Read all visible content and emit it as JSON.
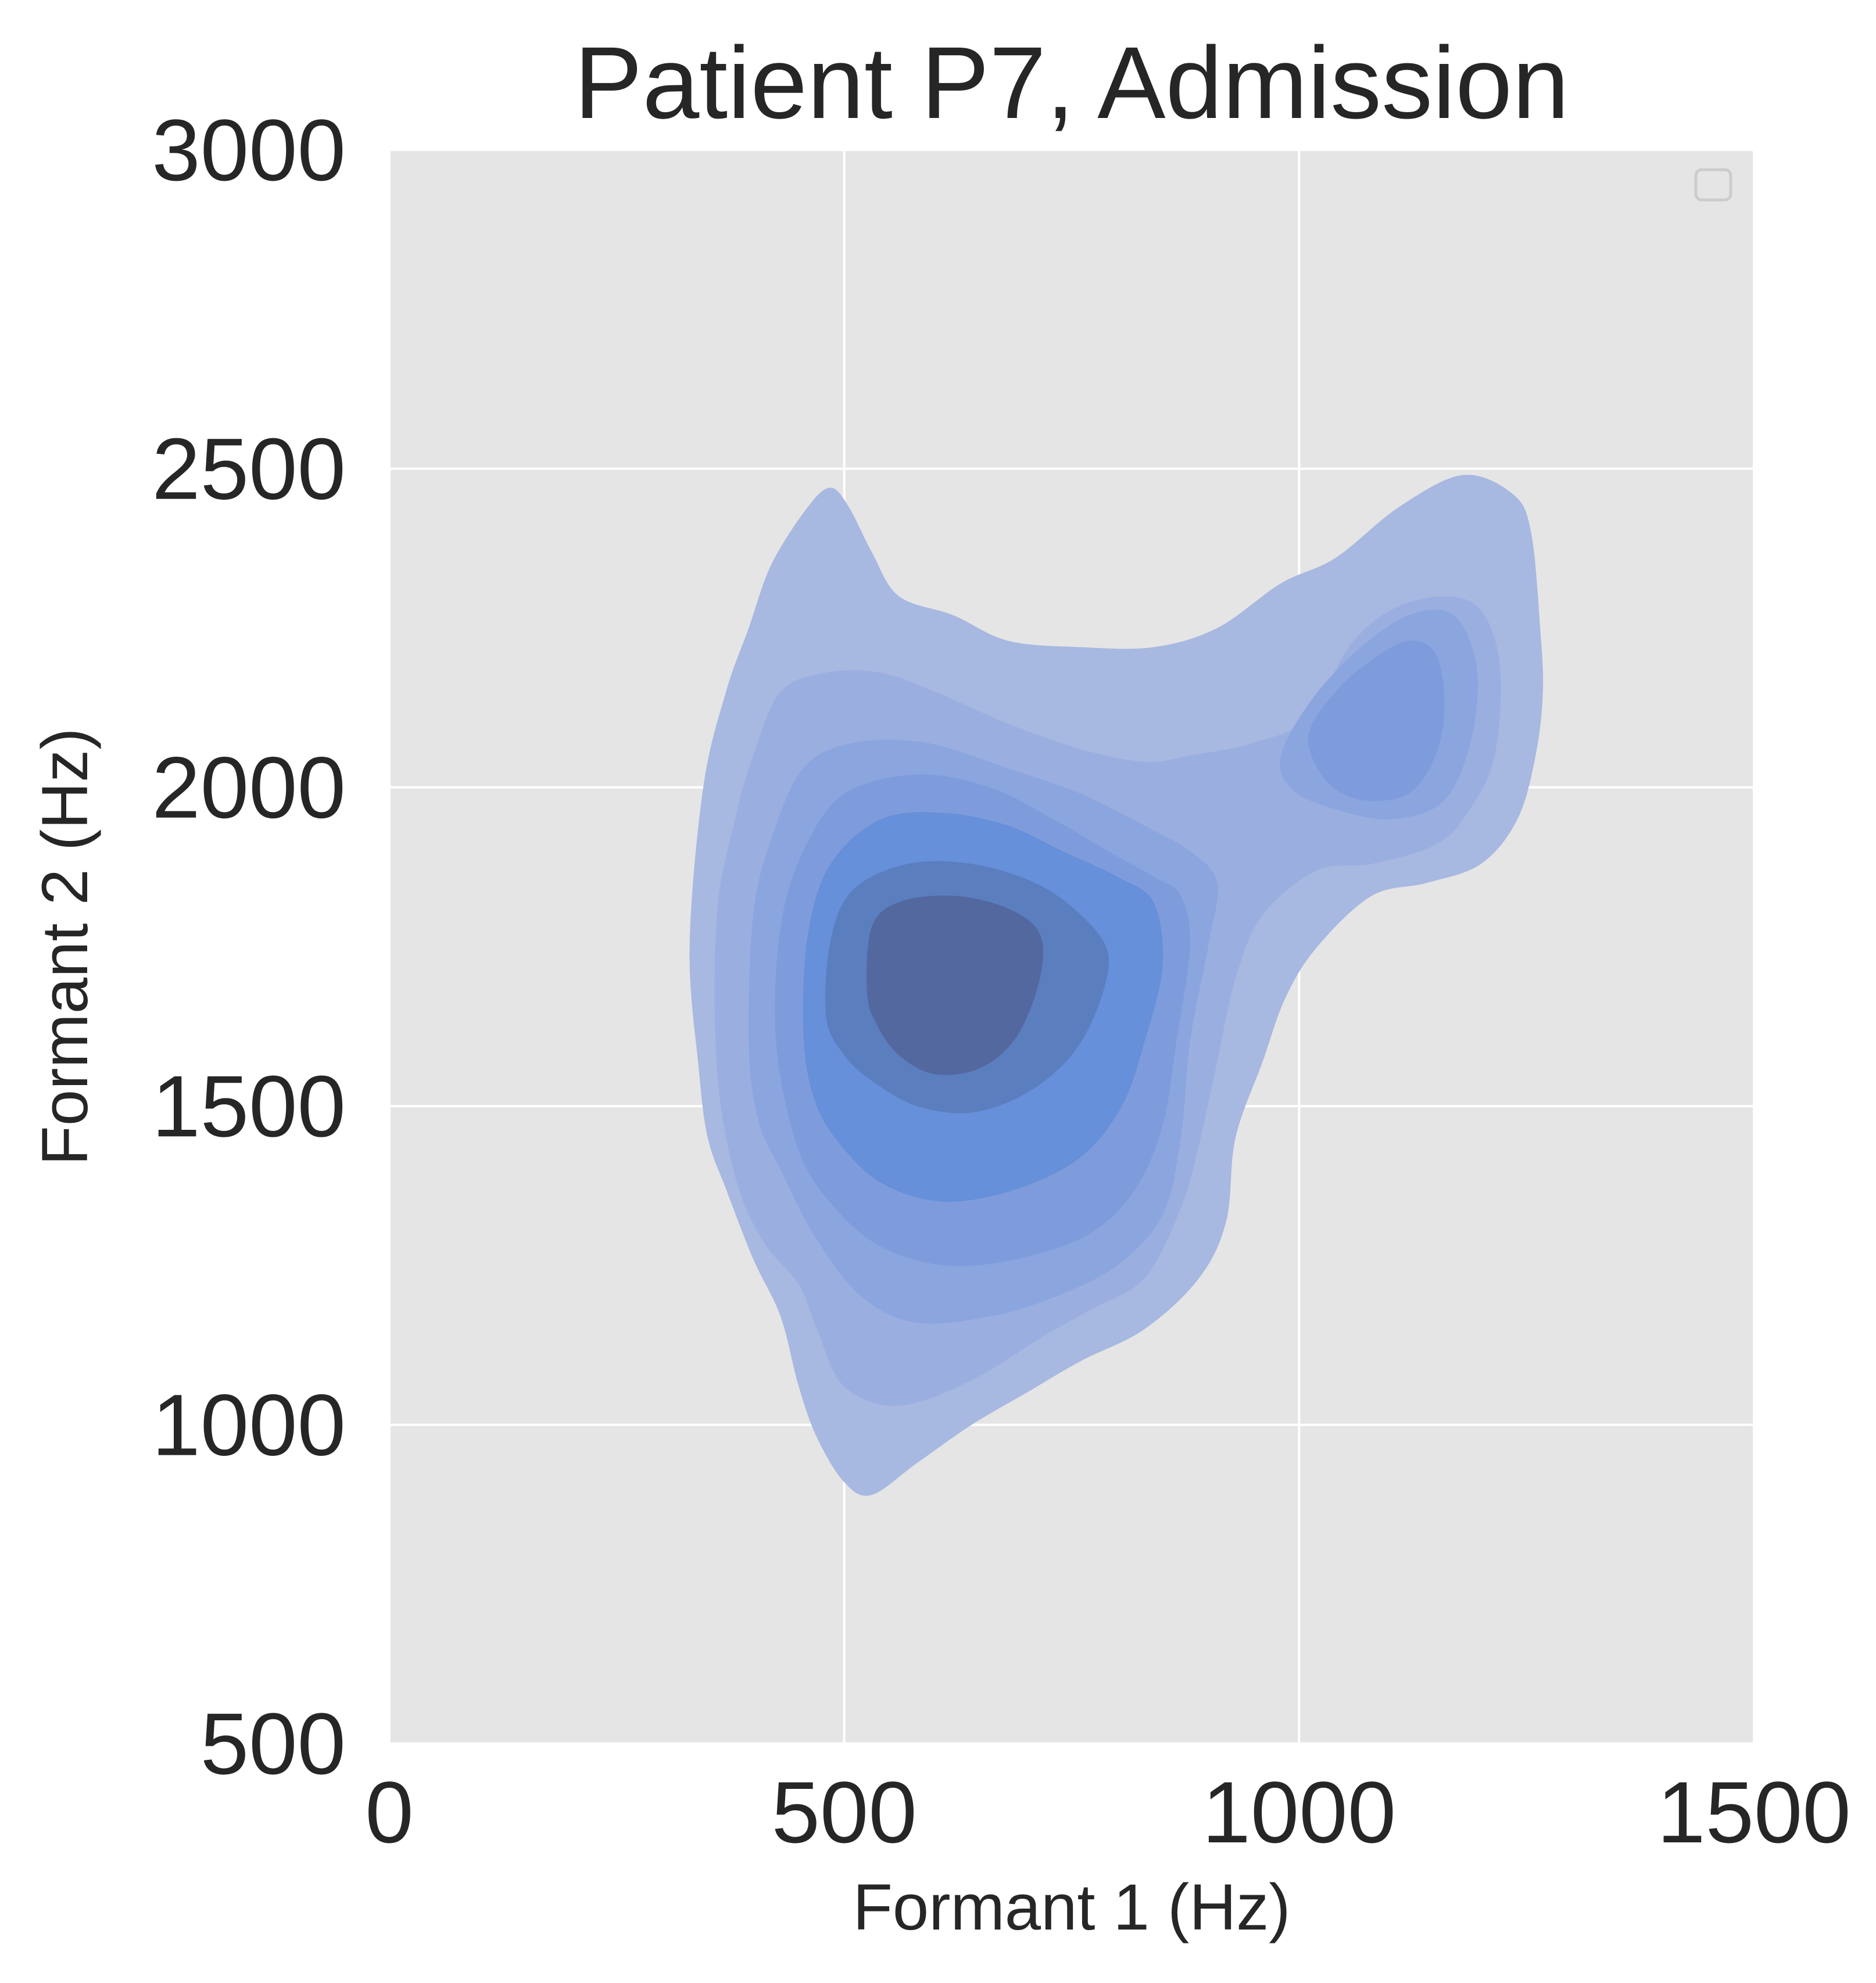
{
  "chart_data": {
    "type": "kde_density_contour",
    "title": "Patient P7, Admission",
    "xlabel": "Formant 1 (Hz)",
    "ylabel": "Formant 2 (Hz)",
    "xlim": [
      0,
      1500
    ],
    "ylim": [
      500,
      3000
    ],
    "x_ticks": [
      0,
      500,
      1000,
      1500
    ],
    "y_ticks": [
      500,
      1000,
      1500,
      2000,
      2500,
      3000
    ],
    "x_tick_labels": [
      "0",
      "500",
      "1000",
      "1500"
    ],
    "y_tick_labels": [
      "500",
      "1000",
      "1500",
      "2000",
      "2500",
      "3000"
    ],
    "grid": true,
    "legend": {
      "placement": "top-right",
      "entries": []
    },
    "colors": {
      "background": "#e5e5e5",
      "grid": "#ffffff",
      "text": "#262626",
      "fill_levels": [
        "#a7b8e1",
        "#9aafe0",
        "#8ba5de",
        "#7e9cdb",
        "#6690d9",
        "#5b7ebf",
        "#52689f",
        "#4b5a7e"
      ]
    },
    "contour_levels": [
      {
        "level": 1,
        "points": [
          [
            340,
            1560
          ],
          [
            330,
            1750
          ],
          [
            345,
            2000
          ],
          [
            370,
            2150
          ],
          [
            395,
            2250
          ],
          [
            420,
            2350
          ],
          [
            460,
            2440
          ],
          [
            485,
            2470
          ],
          [
            505,
            2440
          ],
          [
            530,
            2370
          ],
          [
            560,
            2300
          ],
          [
            620,
            2270
          ],
          [
            680,
            2230
          ],
          [
            760,
            2220
          ],
          [
            840,
            2220
          ],
          [
            910,
            2250
          ],
          [
            980,
            2320
          ],
          [
            1040,
            2360
          ],
          [
            1110,
            2440
          ],
          [
            1180,
            2490
          ],
          [
            1235,
            2460
          ],
          [
            1255,
            2400
          ],
          [
            1265,
            2250
          ],
          [
            1268,
            2150
          ],
          [
            1260,
            2050
          ],
          [
            1240,
            1950
          ],
          [
            1200,
            1880
          ],
          [
            1140,
            1850
          ],
          [
            1080,
            1830
          ],
          [
            1020,
            1750
          ],
          [
            985,
            1670
          ],
          [
            960,
            1570
          ],
          [
            930,
            1450
          ],
          [
            920,
            1320
          ],
          [
            890,
            1230
          ],
          [
            830,
            1150
          ],
          [
            760,
            1100
          ],
          [
            700,
            1050
          ],
          [
            640,
            1000
          ],
          [
            580,
            940
          ],
          [
            530,
            890
          ],
          [
            500,
            910
          ],
          [
            470,
            980
          ],
          [
            450,
            1060
          ],
          [
            430,
            1170
          ],
          [
            400,
            1260
          ],
          [
            370,
            1370
          ],
          [
            350,
            1450
          ]
        ]
      },
      {
        "level": 2,
        "points": [
          [
            360,
            1560
          ],
          [
            360,
            1800
          ],
          [
            380,
            1950
          ],
          [
            400,
            2050
          ],
          [
            430,
            2150
          ],
          [
            480,
            2180
          ],
          [
            540,
            2180
          ],
          [
            600,
            2150
          ],
          [
            680,
            2100
          ],
          [
            760,
            2060
          ],
          [
            830,
            2040
          ],
          [
            880,
            2050
          ],
          [
            950,
            2070
          ],
          [
            1010,
            2110
          ],
          [
            1060,
            2230
          ],
          [
            1120,
            2290
          ],
          [
            1190,
            2290
          ],
          [
            1220,
            2200
          ],
          [
            1215,
            2050
          ],
          [
            1185,
            1960
          ],
          [
            1150,
            1910
          ],
          [
            1080,
            1880
          ],
          [
            1020,
            1870
          ],
          [
            960,
            1800
          ],
          [
            930,
            1700
          ],
          [
            910,
            1570
          ],
          [
            890,
            1440
          ],
          [
            870,
            1340
          ],
          [
            830,
            1230
          ],
          [
            770,
            1180
          ],
          [
            720,
            1140
          ],
          [
            640,
            1070
          ],
          [
            560,
            1030
          ],
          [
            500,
            1060
          ],
          [
            470,
            1150
          ],
          [
            450,
            1220
          ],
          [
            410,
            1290
          ],
          [
            380,
            1390
          ]
        ]
      },
      {
        "level": 3,
        "points": [
          [
            395,
            1600
          ],
          [
            400,
            1800
          ],
          [
            420,
            1920
          ],
          [
            455,
            2030
          ],
          [
            510,
            2070
          ],
          [
            590,
            2070
          ],
          [
            680,
            2030
          ],
          [
            760,
            1990
          ],
          [
            830,
            1940
          ],
          [
            880,
            1900
          ],
          [
            910,
            1850
          ],
          [
            900,
            1750
          ],
          [
            880,
            1600
          ],
          [
            870,
            1450
          ],
          [
            850,
            1330
          ],
          [
            800,
            1250
          ],
          [
            730,
            1200
          ],
          [
            660,
            1170
          ],
          [
            580,
            1160
          ],
          [
            520,
            1200
          ],
          [
            470,
            1290
          ],
          [
            430,
            1400
          ],
          [
            405,
            1480
          ]
        ]
      },
      {
        "level": 3,
        "points": [
          [
            980,
            2050
          ],
          [
            1010,
            2130
          ],
          [
            1060,
            2210
          ],
          [
            1120,
            2270
          ],
          [
            1170,
            2270
          ],
          [
            1195,
            2190
          ],
          [
            1190,
            2080
          ],
          [
            1160,
            1980
          ],
          [
            1100,
            1950
          ],
          [
            1030,
            1970
          ],
          [
            990,
            2000
          ]
        ]
      },
      {
        "level": 4,
        "points": [
          [
            425,
            1600
          ],
          [
            430,
            1780
          ],
          [
            455,
            1900
          ],
          [
            500,
            1990
          ],
          [
            580,
            2020
          ],
          [
            660,
            2000
          ],
          [
            730,
            1950
          ],
          [
            790,
            1900
          ],
          [
            840,
            1860
          ],
          [
            870,
            1830
          ],
          [
            880,
            1750
          ],
          [
            865,
            1600
          ],
          [
            850,
            1470
          ],
          [
            820,
            1370
          ],
          [
            770,
            1300
          ],
          [
            690,
            1260
          ],
          [
            610,
            1250
          ],
          [
            540,
            1280
          ],
          [
            490,
            1340
          ],
          [
            450,
            1430
          ]
        ]
      },
      {
        "level": 4,
        "points": [
          [
            1010,
            2080
          ],
          [
            1040,
            2150
          ],
          [
            1080,
            2200
          ],
          [
            1120,
            2230
          ],
          [
            1150,
            2210
          ],
          [
            1160,
            2130
          ],
          [
            1150,
            2050
          ],
          [
            1120,
            1990
          ],
          [
            1070,
            1980
          ],
          [
            1030,
            2010
          ]
        ]
      },
      {
        "level": 5,
        "points": [
          [
            455,
            1620
          ],
          [
            460,
            1770
          ],
          [
            485,
            1880
          ],
          [
            540,
            1950
          ],
          [
            610,
            1960
          ],
          [
            680,
            1940
          ],
          [
            740,
            1900
          ],
          [
            800,
            1860
          ],
          [
            840,
            1820
          ],
          [
            850,
            1720
          ],
          [
            830,
            1600
          ],
          [
            805,
            1500
          ],
          [
            760,
            1420
          ],
          [
            690,
            1370
          ],
          [
            610,
            1350
          ],
          [
            540,
            1380
          ],
          [
            490,
            1450
          ],
          [
            465,
            1520
          ]
        ]
      },
      {
        "level": 6,
        "points": [
          [
            480,
            1640
          ],
          [
            485,
            1760
          ],
          [
            510,
            1840
          ],
          [
            570,
            1880
          ],
          [
            640,
            1880
          ],
          [
            710,
            1850
          ],
          [
            760,
            1800
          ],
          [
            790,
            1740
          ],
          [
            780,
            1660
          ],
          [
            750,
            1580
          ],
          [
            700,
            1520
          ],
          [
            640,
            1490
          ],
          [
            580,
            1500
          ],
          [
            530,
            1540
          ],
          [
            500,
            1580
          ]
        ]
      },
      {
        "level": 7,
        "points": [
          [
            525,
            1680
          ],
          [
            530,
            1780
          ],
          [
            560,
            1820
          ],
          [
            620,
            1830
          ],
          [
            680,
            1810
          ],
          [
            715,
            1770
          ],
          [
            715,
            1700
          ],
          [
            690,
            1610
          ],
          [
            650,
            1560
          ],
          [
            600,
            1550
          ],
          [
            560,
            1580
          ],
          [
            535,
            1630
          ]
        ]
      }
    ]
  }
}
